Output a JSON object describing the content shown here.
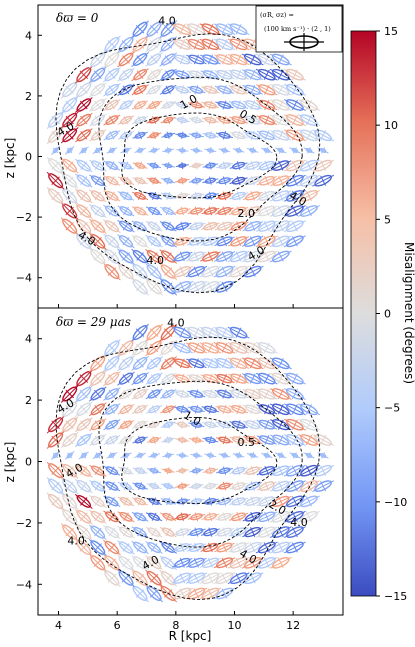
{
  "chart_data": [
    {
      "type": "scatter",
      "panel_label": "δϖ = 0",
      "xlabel": "",
      "ylabel": "z [kpc]",
      "xlim": [
        3.3,
        13.7
      ],
      "ylim": [
        -5.0,
        5.0
      ],
      "xticks": [
        4,
        6,
        8,
        10,
        12
      ],
      "yticks": [
        -4,
        -2,
        0,
        2,
        4
      ],
      "contour_levels": [
        "4.0",
        "1.0",
        "0.5",
        "2.0",
        "4.0",
        "4.0",
        "4.0",
        "4.0",
        "4.0"
      ],
      "legend": {
        "line1": "(σR, σz) =",
        "line2": "(100 km s⁻¹) · (2 , 1)"
      },
      "grid": false
    },
    {
      "type": "scatter",
      "panel_label": "δϖ = 29 μas",
      "xlabel": "R [kpc]",
      "ylabel": "z [kpc]",
      "xlim": [
        3.3,
        13.7
      ],
      "ylim": [
        -5.0,
        5.0
      ],
      "xticks": [
        4,
        6,
        8,
        10,
        12
      ],
      "yticks": [
        -4,
        -2,
        0,
        2,
        4
      ],
      "contour_levels": [
        "4.0",
        "4.0",
        "1.0",
        "0.5",
        "4.0",
        "2.0",
        "4.0",
        "4.0",
        "4.0",
        "4.0"
      ],
      "grid": false
    }
  ],
  "colorbar": {
    "label": "Misalignment (degrees)",
    "ticks": [
      15,
      10,
      5,
      0,
      -5,
      -10,
      -15
    ],
    "range": [
      -15,
      15
    ],
    "colors": [
      "#3b4cc0",
      "#7396f5",
      "#b0cbfc",
      "#dddddd",
      "#f6bfa6",
      "#e57058",
      "#b40426"
    ]
  }
}
